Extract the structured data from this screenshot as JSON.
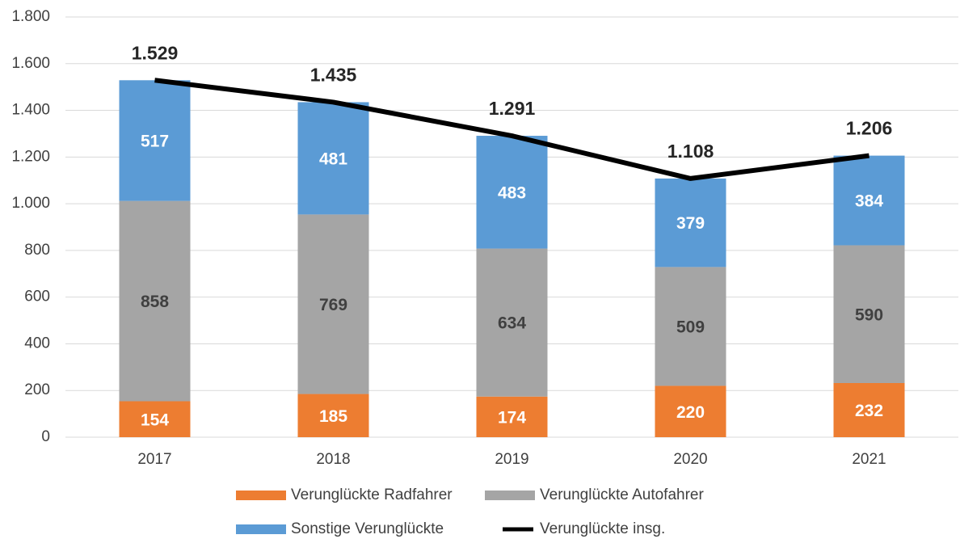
{
  "chart_data": {
    "type": "bar",
    "stacked": true,
    "categories": [
      "2017",
      "2018",
      "2019",
      "2020",
      "2021"
    ],
    "series": [
      {
        "name": "Verunglückte Radfahrer",
        "color": "#ed7d31",
        "values": [
          154,
          185,
          174,
          220,
          232
        ]
      },
      {
        "name": "Verunglückte Autofahrer",
        "color": "#a5a5a5",
        "values": [
          858,
          769,
          634,
          509,
          590
        ]
      },
      {
        "name": "Sonstige Verunglückte",
        "color": "#5b9bd5",
        "values": [
          517,
          481,
          483,
          379,
          384
        ]
      },
      {
        "name": "Verunglückte insg.",
        "color": "#000000",
        "type": "line",
        "values": [
          1529,
          1435,
          1291,
          1108,
          1206
        ],
        "value_labels": [
          "1.529",
          "1.435",
          "1.291",
          "1.108",
          "1.206"
        ]
      }
    ],
    "ylim": [
      0,
      1800
    ],
    "yticks": [
      0,
      200,
      400,
      600,
      800,
      {
        "value": 1000,
        "label": "1.000"
      },
      {
        "value": 1200,
        "label": "1.200"
      },
      {
        "value": 1400,
        "label": "1.400"
      },
      {
        "value": 1600,
        "label": "1.600"
      },
      {
        "value": 1800,
        "label": "1.800"
      }
    ],
    "grid": true
  }
}
